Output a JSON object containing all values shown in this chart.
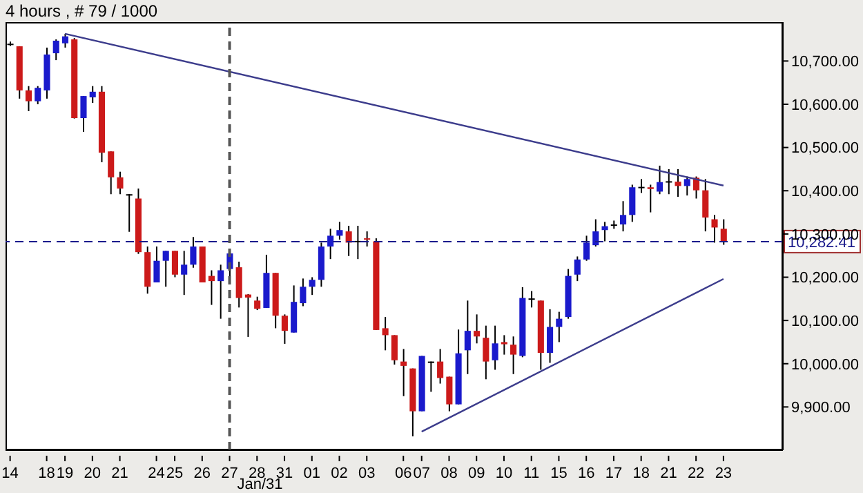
{
  "chart_data": {
    "type": "candlestick",
    "title": "4 hours , # 79 / 1000",
    "categories": [
      "14",
      null,
      null,
      null,
      "18",
      null,
      "19",
      null,
      null,
      "20",
      null,
      null,
      "21",
      null,
      null,
      null,
      "24",
      null,
      "25",
      null,
      null,
      "26",
      null,
      null,
      "27",
      null,
      null,
      "28",
      null,
      null,
      "31",
      null,
      null,
      "01",
      null,
      null,
      "02",
      null,
      null,
      "03",
      null,
      null,
      null,
      "06",
      null,
      "07",
      null,
      null,
      "08",
      null,
      null,
      "09",
      null,
      null,
      "10",
      null,
      null,
      "11",
      null,
      null,
      "15",
      null,
      null,
      "16",
      null,
      null,
      "17",
      null,
      null,
      "18",
      null,
      null,
      "21",
      null,
      null,
      "22",
      null,
      null,
      "23",
      null,
      null,
      null,
      null,
      null,
      null
    ],
    "ohlc": [
      [
        10738,
        10745,
        10735,
        10740
      ],
      [
        10734,
        10734,
        10613,
        10632
      ],
      [
        10632,
        10642,
        10584,
        10607
      ],
      [
        10607,
        10642,
        10600,
        10638
      ],
      [
        10632,
        10731,
        10613,
        10715
      ],
      [
        10718,
        10750,
        10702,
        10747
      ],
      [
        10741,
        10763,
        10731,
        10757
      ],
      [
        10750,
        10753,
        10567,
        10568
      ],
      [
        10568,
        10619,
        10536,
        10619
      ],
      [
        10616,
        10642,
        10603,
        10629
      ],
      [
        10629,
        10642,
        10466,
        10488
      ],
      [
        10491,
        10491,
        10392,
        10431
      ],
      [
        10431,
        10444,
        10392,
        10405
      ],
      [
        10392,
        10392,
        10305,
        10389
      ],
      [
        10382,
        10405,
        10254,
        10258
      ],
      [
        10258,
        10271,
        10162,
        10178
      ],
      [
        10188,
        10271,
        10188,
        10238
      ],
      [
        10238,
        10261,
        10178,
        10261
      ],
      [
        10261,
        10261,
        10200,
        10206
      ],
      [
        10206,
        10261,
        10159,
        10229
      ],
      [
        10229,
        10293,
        10222,
        10271
      ],
      [
        10271,
        10271,
        10188,
        10188
      ],
      [
        10203,
        10216,
        10136,
        10191
      ],
      [
        10191,
        10229,
        10104,
        10216
      ],
      [
        10219,
        10265,
        10191,
        10255
      ],
      [
        10223,
        10236,
        10130,
        10152
      ],
      [
        10160,
        10161,
        10062,
        10153
      ],
      [
        10146,
        10155,
        10124,
        10127
      ],
      [
        10129,
        10252,
        10129,
        10210
      ],
      [
        10210,
        10210,
        10082,
        10111
      ],
      [
        10111,
        10114,
        10046,
        10076
      ],
      [
        10072,
        10181,
        10072,
        10143
      ],
      [
        10140,
        10197,
        10133,
        10178
      ],
      [
        10178,
        10200,
        10159,
        10194
      ],
      [
        10194,
        10280,
        10178,
        10271
      ],
      [
        10271,
        10312,
        10242,
        10296
      ],
      [
        10296,
        10328,
        10287,
        10309
      ],
      [
        10306,
        10319,
        10249,
        10280
      ],
      [
        10283,
        10319,
        10242,
        10284
      ],
      [
        10290,
        10306,
        10271,
        10287
      ],
      [
        10283,
        10290,
        10078,
        10078
      ],
      [
        10082,
        10108,
        10031,
        10066
      ],
      [
        10066,
        10066,
        9998,
        10008
      ],
      [
        10005,
        10034,
        9925,
        9995
      ],
      [
        9989,
        9989,
        9832,
        9890
      ],
      [
        9890,
        10018,
        9890,
        10018
      ],
      [
        10003,
        10005,
        9935,
        10005
      ],
      [
        10005,
        10034,
        9954,
        9967
      ],
      [
        9970,
        9970,
        9890,
        9906
      ],
      [
        9906,
        10079,
        9906,
        10024
      ],
      [
        10031,
        10146,
        9976,
        10076
      ],
      [
        10076,
        10114,
        10047,
        10063
      ],
      [
        10060,
        10088,
        9964,
        10005
      ],
      [
        10008,
        10088,
        9986,
        10047
      ],
      [
        10050,
        10066,
        10021,
        10045
      ],
      [
        10044,
        10063,
        9976,
        10021
      ],
      [
        10018,
        10177,
        10015,
        10152
      ],
      [
        10148,
        10168,
        10130,
        10151
      ],
      [
        10146,
        10146,
        9986,
        10025
      ],
      [
        10025,
        10126,
        10002,
        10085
      ],
      [
        10085,
        10120,
        10050,
        10104
      ],
      [
        10108,
        10219,
        10104,
        10203
      ],
      [
        10206,
        10248,
        10191,
        10241
      ],
      [
        10241,
        10296,
        10238,
        10280
      ],
      [
        10274,
        10334,
        10271,
        10306
      ],
      [
        10309,
        10328,
        10283,
        10318
      ],
      [
        10321,
        10331,
        10312,
        10322
      ],
      [
        10322,
        10376,
        10306,
        10344
      ],
      [
        10344,
        10414,
        10328,
        10408
      ],
      [
        10407,
        10427,
        10395,
        10409
      ],
      [
        10408,
        10414,
        10350,
        10404
      ],
      [
        10398,
        10458,
        10392,
        10420
      ],
      [
        10420,
        10450,
        10392,
        10422
      ],
      [
        10421,
        10450,
        10386,
        10411
      ],
      [
        10411,
        10433,
        10389,
        10427
      ],
      [
        10430,
        10433,
        10382,
        10401
      ],
      [
        10401,
        10427,
        10306,
        10338
      ],
      [
        10334,
        10344,
        10280,
        10315
      ],
      [
        10312,
        10334,
        10275,
        10282.41
      ],
      null,
      null,
      null,
      null,
      null,
      null
    ],
    "colors": [
      "#000000",
      "#cc1a1a",
      "#cc1a1a",
      "#1a1acc",
      "#1a1acc",
      "#1a1acc",
      "#1a1acc",
      "#cc1a1a",
      "#1a1acc",
      "#1a1acc",
      "#cc1a1a",
      "#cc1a1a",
      "#cc1a1a",
      "#000000",
      "#cc1a1a",
      "#cc1a1a",
      "#1a1acc",
      "#1a1acc",
      "#cc1a1a",
      "#1a1acc",
      "#1a1acc",
      "#cc1a1a",
      "#cc1a1a",
      "#1a1acc",
      "#1a1acc",
      "#cc1a1a",
      "#cc1a1a",
      "#cc1a1a",
      "#1a1acc",
      "#cc1a1a",
      "#cc1a1a",
      "#1a1acc",
      "#1a1acc",
      "#1a1acc",
      "#1a1acc",
      "#1a1acc",
      "#1a1acc",
      "#cc1a1a",
      "#000000",
      "#cc1a1a",
      "#cc1a1a",
      "#cc1a1a",
      "#cc1a1a",
      "#cc1a1a",
      "#cc1a1a",
      "#1a1acc",
      "#000000",
      "#cc1a1a",
      "#cc1a1a",
      "#1a1acc",
      "#1a1acc",
      "#cc1a1a",
      "#cc1a1a",
      "#1a1acc",
      "#cc1a1a",
      "#cc1a1a",
      "#1a1acc",
      "#000000",
      "#cc1a1a",
      "#1a1acc",
      "#1a1acc",
      "#1a1acc",
      "#1a1acc",
      "#1a1acc",
      "#1a1acc",
      "#1a1acc",
      "#000000",
      "#1a1acc",
      "#1a1acc",
      "#000000",
      "#cc1a1a",
      "#1a1acc",
      "#000000",
      "#cc1a1a",
      "#1a1acc",
      "#cc1a1a",
      "#cc1a1a",
      "#cc1a1a",
      "#cc1a1a",
      null,
      null,
      null,
      null,
      null,
      null
    ],
    "series": [
      {
        "type": "line",
        "x": [
          "19",
          "23"
        ],
        "values": [
          10763,
          10412
        ],
        "color": "#3c3c8c"
      },
      {
        "type": "line",
        "x": [
          "07",
          "23"
        ],
        "values": [
          9843,
          10196
        ],
        "color": "#3c3c8c"
      }
    ],
    "ylim": [
      9800,
      10790
    ],
    "yticks": [
      {
        "value": 9900,
        "label": "9,900.00"
      },
      {
        "value": 10000,
        "label": "10,000.00"
      },
      {
        "value": 10100,
        "label": "10,100.00"
      },
      {
        "value": 10200,
        "label": "10,200.00"
      },
      {
        "value": 10300,
        "label": "10,300.00"
      },
      {
        "value": 10400,
        "label": "10,400.00"
      },
      {
        "value": 10500,
        "label": "10,500.00"
      },
      {
        "value": 10600,
        "label": "10,600.00"
      },
      {
        "value": 10700,
        "label": "10,700.00"
      }
    ],
    "ref_lines": [
      {
        "axis": "y",
        "value": 10282.41,
        "label": "10,282.41",
        "color": "#1a1a8c",
        "line_style": "dashed"
      },
      {
        "axis": "x",
        "value": "27",
        "label": "Jan/31",
        "color": "#555555",
        "line_style": "dashed"
      }
    ]
  }
}
